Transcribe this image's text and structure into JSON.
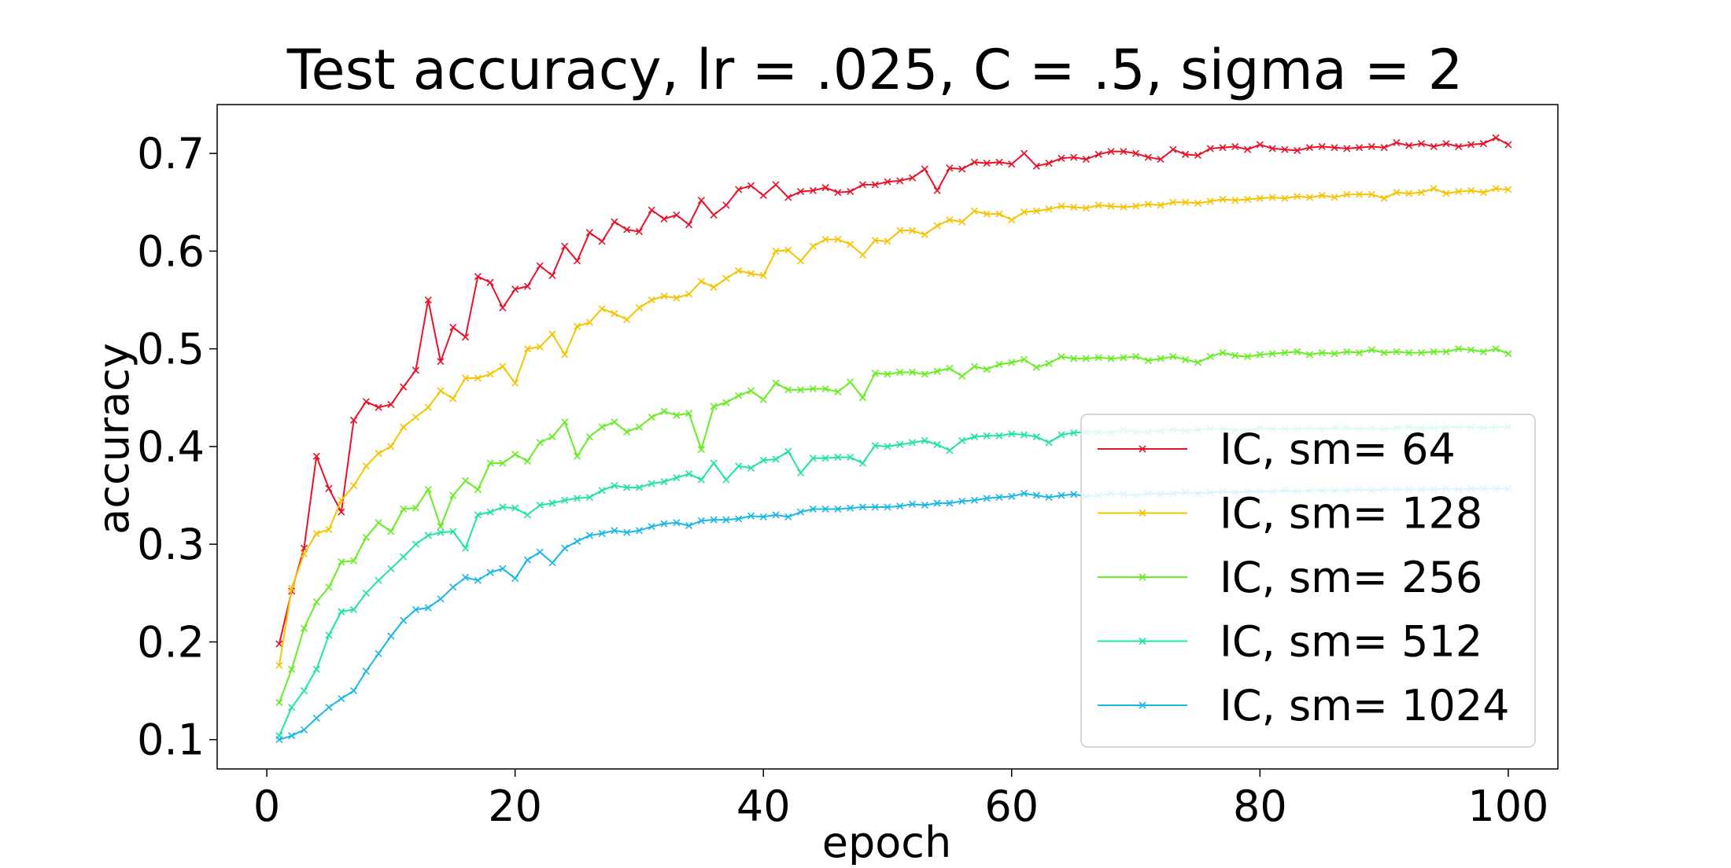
{
  "chart_data": {
    "type": "line",
    "title": "Test accuracy, lr = .025, C = .5, sigma = 2",
    "xlabel": "epoch",
    "ylabel": "accuracy",
    "xlim": [
      -4,
      104
    ],
    "ylim": [
      0.07,
      0.75
    ],
    "xticks": [
      0,
      20,
      40,
      60,
      80,
      100
    ],
    "yticks": [
      0.1,
      0.2,
      0.3,
      0.4,
      0.5,
      0.6,
      0.7
    ],
    "xtick_labels": [
      "0",
      "20",
      "40",
      "60",
      "80",
      "100"
    ],
    "ytick_labels": [
      "0.1",
      "0.2",
      "0.3",
      "0.4",
      "0.5",
      "0.6",
      "0.7"
    ],
    "grid": false,
    "legend_position": "lower-right",
    "marker": "x",
    "x": [
      1,
      2,
      3,
      4,
      5,
      6,
      7,
      8,
      9,
      10,
      11,
      12,
      13,
      14,
      15,
      16,
      17,
      18,
      19,
      20,
      21,
      22,
      23,
      24,
      25,
      26,
      27,
      28,
      29,
      30,
      31,
      32,
      33,
      34,
      35,
      36,
      37,
      38,
      39,
      40,
      41,
      42,
      43,
      44,
      45,
      46,
      47,
      48,
      49,
      50,
      51,
      52,
      53,
      54,
      55,
      56,
      57,
      58,
      59,
      60,
      61,
      62,
      63,
      64,
      65,
      66,
      67,
      68,
      69,
      70,
      71,
      72,
      73,
      74,
      75,
      76,
      77,
      78,
      79,
      80,
      81,
      82,
      83,
      84,
      85,
      86,
      87,
      88,
      89,
      90,
      91,
      92,
      93,
      94,
      95,
      96,
      97,
      98,
      99,
      100
    ],
    "series": [
      {
        "name": "IC, sm= 64",
        "color": "#e6132a",
        "values": [
          0.198,
          0.252,
          0.296,
          0.39,
          0.357,
          0.333,
          0.427,
          0.446,
          0.44,
          0.443,
          0.461,
          0.478,
          0.55,
          0.487,
          0.522,
          0.512,
          0.574,
          0.568,
          0.542,
          0.561,
          0.564,
          0.585,
          0.575,
          0.605,
          0.59,
          0.619,
          0.61,
          0.63,
          0.622,
          0.62,
          0.642,
          0.633,
          0.637,
          0.627,
          0.652,
          0.637,
          0.647,
          0.663,
          0.667,
          0.657,
          0.668,
          0.655,
          0.661,
          0.662,
          0.665,
          0.66,
          0.661,
          0.668,
          0.668,
          0.671,
          0.672,
          0.675,
          0.684,
          0.662,
          0.685,
          0.684,
          0.691,
          0.69,
          0.691,
          0.689,
          0.7,
          0.687,
          0.69,
          0.695,
          0.696,
          0.694,
          0.699,
          0.702,
          0.702,
          0.7,
          0.696,
          0.694,
          0.704,
          0.699,
          0.698,
          0.705,
          0.706,
          0.707,
          0.704,
          0.709,
          0.705,
          0.704,
          0.703,
          0.706,
          0.707,
          0.706,
          0.705,
          0.706,
          0.707,
          0.706,
          0.711,
          0.708,
          0.71,
          0.707,
          0.71,
          0.707,
          0.709,
          0.71,
          0.716,
          0.709
        ]
      },
      {
        "name": "IC, sm= 128",
        "color": "#f5c400",
        "values": [
          0.176,
          0.255,
          0.29,
          0.311,
          0.315,
          0.345,
          0.36,
          0.38,
          0.393,
          0.4,
          0.42,
          0.43,
          0.44,
          0.457,
          0.449,
          0.47,
          0.47,
          0.474,
          0.482,
          0.465,
          0.5,
          0.502,
          0.515,
          0.494,
          0.523,
          0.527,
          0.541,
          0.536,
          0.53,
          0.542,
          0.55,
          0.554,
          0.552,
          0.556,
          0.569,
          0.563,
          0.572,
          0.58,
          0.577,
          0.575,
          0.6,
          0.601,
          0.59,
          0.605,
          0.612,
          0.612,
          0.607,
          0.596,
          0.611,
          0.61,
          0.621,
          0.621,
          0.617,
          0.626,
          0.632,
          0.63,
          0.641,
          0.638,
          0.638,
          0.632,
          0.64,
          0.641,
          0.643,
          0.646,
          0.645,
          0.644,
          0.647,
          0.646,
          0.645,
          0.646,
          0.648,
          0.647,
          0.65,
          0.65,
          0.649,
          0.651,
          0.653,
          0.652,
          0.653,
          0.654,
          0.655,
          0.654,
          0.656,
          0.655,
          0.657,
          0.655,
          0.658,
          0.658,
          0.658,
          0.654,
          0.66,
          0.659,
          0.66,
          0.664,
          0.659,
          0.661,
          0.662,
          0.66,
          0.664,
          0.663
        ]
      },
      {
        "name": "IC, sm= 256",
        "color": "#66ee22",
        "values": [
          0.138,
          0.172,
          0.214,
          0.241,
          0.256,
          0.282,
          0.283,
          0.307,
          0.322,
          0.313,
          0.336,
          0.337,
          0.356,
          0.318,
          0.35,
          0.365,
          0.356,
          0.383,
          0.383,
          0.392,
          0.385,
          0.404,
          0.41,
          0.425,
          0.39,
          0.41,
          0.42,
          0.425,
          0.415,
          0.42,
          0.43,
          0.436,
          0.432,
          0.434,
          0.397,
          0.441,
          0.445,
          0.452,
          0.457,
          0.448,
          0.465,
          0.458,
          0.458,
          0.459,
          0.459,
          0.456,
          0.466,
          0.45,
          0.475,
          0.474,
          0.476,
          0.476,
          0.474,
          0.477,
          0.48,
          0.472,
          0.482,
          0.479,
          0.484,
          0.486,
          0.489,
          0.481,
          0.485,
          0.492,
          0.49,
          0.49,
          0.491,
          0.49,
          0.491,
          0.492,
          0.488,
          0.49,
          0.492,
          0.489,
          0.486,
          0.492,
          0.496,
          0.493,
          0.492,
          0.494,
          0.495,
          0.496,
          0.497,
          0.494,
          0.496,
          0.495,
          0.497,
          0.496,
          0.499,
          0.496,
          0.497,
          0.496,
          0.496,
          0.497,
          0.497,
          0.5,
          0.499,
          0.497,
          0.5,
          0.495
        ]
      },
      {
        "name": "IC, sm= 512",
        "color": "#1de5a0",
        "values": [
          0.104,
          0.133,
          0.15,
          0.172,
          0.207,
          0.231,
          0.233,
          0.25,
          0.263,
          0.275,
          0.287,
          0.3,
          0.309,
          0.312,
          0.313,
          0.296,
          0.33,
          0.333,
          0.338,
          0.337,
          0.33,
          0.34,
          0.342,
          0.345,
          0.347,
          0.348,
          0.355,
          0.36,
          0.358,
          0.358,
          0.362,
          0.364,
          0.368,
          0.372,
          0.366,
          0.383,
          0.366,
          0.38,
          0.378,
          0.386,
          0.387,
          0.395,
          0.373,
          0.388,
          0.388,
          0.389,
          0.389,
          0.383,
          0.401,
          0.4,
          0.402,
          0.404,
          0.406,
          0.402,
          0.396,
          0.406,
          0.41,
          0.411,
          0.411,
          0.413,
          0.412,
          0.41,
          0.404,
          0.412,
          0.414,
          0.415,
          0.415,
          0.414,
          0.417,
          0.415,
          0.415,
          0.416,
          0.417,
          0.416,
          0.417,
          0.418,
          0.418,
          0.417,
          0.416,
          0.419,
          0.418,
          0.418,
          0.418,
          0.419,
          0.418,
          0.419,
          0.419,
          0.418,
          0.419,
          0.418,
          0.419,
          0.42,
          0.419,
          0.419,
          0.42,
          0.42,
          0.42,
          0.419,
          0.42,
          0.42
        ]
      },
      {
        "name": "IC, sm= 1024",
        "color": "#18b8e6",
        "values": [
          0.1,
          0.104,
          0.11,
          0.122,
          0.133,
          0.142,
          0.15,
          0.17,
          0.188,
          0.206,
          0.222,
          0.233,
          0.235,
          0.244,
          0.256,
          0.266,
          0.263,
          0.271,
          0.275,
          0.265,
          0.284,
          0.292,
          0.281,
          0.296,
          0.303,
          0.309,
          0.311,
          0.314,
          0.312,
          0.314,
          0.318,
          0.321,
          0.322,
          0.319,
          0.324,
          0.325,
          0.325,
          0.326,
          0.329,
          0.328,
          0.33,
          0.328,
          0.333,
          0.336,
          0.336,
          0.336,
          0.337,
          0.338,
          0.338,
          0.338,
          0.339,
          0.341,
          0.34,
          0.342,
          0.342,
          0.344,
          0.345,
          0.347,
          0.348,
          0.349,
          0.352,
          0.35,
          0.348,
          0.35,
          0.351,
          0.349,
          0.35,
          0.352,
          0.351,
          0.35,
          0.352,
          0.351,
          0.352,
          0.353,
          0.352,
          0.353,
          0.354,
          0.353,
          0.354,
          0.354,
          0.354,
          0.355,
          0.354,
          0.355,
          0.355,
          0.355,
          0.355,
          0.356,
          0.355,
          0.356,
          0.356,
          0.356,
          0.356,
          0.356,
          0.357,
          0.356,
          0.357,
          0.357,
          0.357,
          0.357
        ]
      }
    ]
  }
}
